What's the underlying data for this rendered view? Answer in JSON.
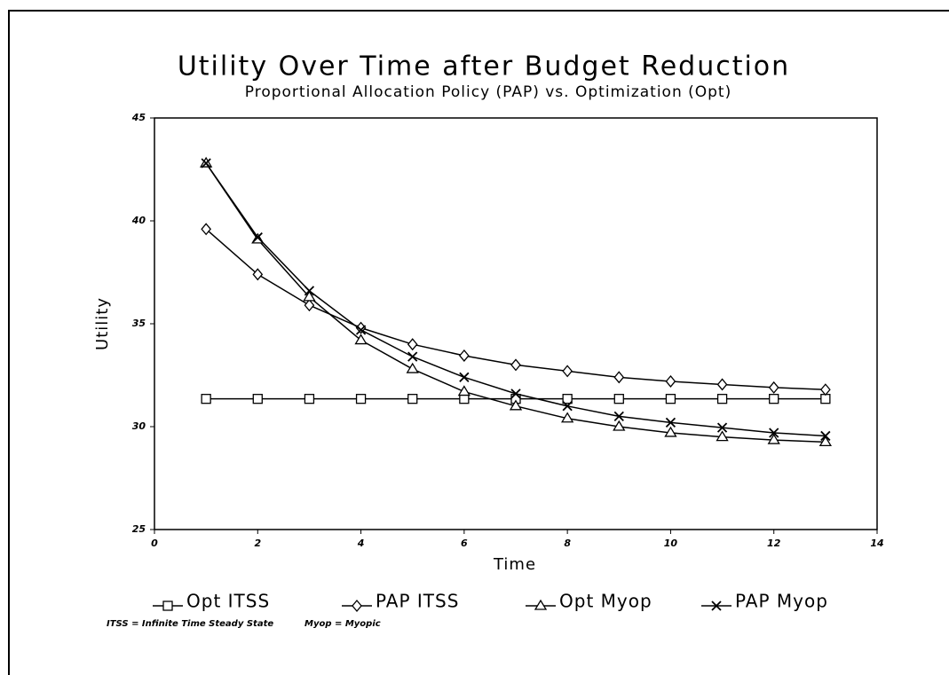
{
  "chart_data": {
    "type": "line",
    "title": "Utility Over Time after Budget Reduction",
    "subtitle": "Proportional Allocation Policy (PAP) vs. Optimization (Opt)",
    "xlabel": "Time",
    "ylabel": "Utility",
    "annotations": [
      "ITSS = Infinite Time Steady State",
      "Myop = Myopic"
    ],
    "x": [
      1,
      2,
      3,
      4,
      5,
      6,
      7,
      8,
      9,
      10,
      11,
      12,
      13
    ],
    "xlim": [
      0,
      14
    ],
    "xticks": [
      0,
      2,
      4,
      6,
      8,
      10,
      12,
      14
    ],
    "ylim": [
      25,
      45
    ],
    "yticks": [
      25,
      30,
      35,
      40,
      45
    ],
    "series": [
      {
        "name": "Opt ITSS",
        "color": "#000000",
        "marker": "square",
        "values": [
          31.35,
          31.35,
          31.35,
          31.35,
          31.35,
          31.35,
          31.35,
          31.35,
          31.35,
          31.35,
          31.35,
          31.35,
          31.35
        ]
      },
      {
        "name": "PAP ITSS",
        "color": "#000000",
        "marker": "diamond",
        "values": [
          39.6,
          37.4,
          35.9,
          34.8,
          34.0,
          33.45,
          33.0,
          32.7,
          32.4,
          32.2,
          32.05,
          31.9,
          31.8
        ]
      },
      {
        "name": "Opt Myop",
        "color": "#000000",
        "marker": "triangle",
        "values": [
          42.8,
          39.1,
          36.3,
          34.2,
          32.8,
          31.7,
          31.0,
          30.4,
          30.0,
          29.7,
          29.5,
          29.35,
          29.25
        ]
      },
      {
        "name": "PAP Myop",
        "color": "#000000",
        "marker": "x",
        "values": [
          42.8,
          39.2,
          36.6,
          34.7,
          33.4,
          32.4,
          31.6,
          31.0,
          30.5,
          30.2,
          29.95,
          29.7,
          29.55
        ]
      }
    ]
  }
}
